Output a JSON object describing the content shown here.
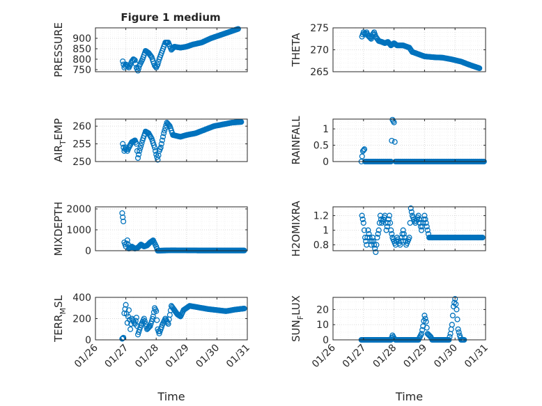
{
  "figure": {
    "title": "Figure 1 medium",
    "xlabel": "Time"
  },
  "time_ticks": [
    "01/26",
    "01/27",
    "01/28",
    "01/29",
    "01/30",
    "01/31"
  ],
  "chart_data": [
    {
      "type": "scatter",
      "id": "pressure",
      "ylabel": "PRESSURE",
      "ylabel_sub": "",
      "ylabel_tail": "",
      "title": "Figure 1 medium",
      "xlim": [
        0,
        5
      ],
      "ylim": [
        740,
        950
      ],
      "yticks": [
        750,
        800,
        850,
        900
      ],
      "ytick_labels": [
        "750",
        "800",
        "850",
        "900"
      ],
      "minor": [
        760,
        770,
        780,
        790,
        810,
        820,
        830,
        840,
        860,
        870,
        880,
        890,
        910,
        920,
        930,
        940
      ],
      "keys": [
        [
          0.9,
          790
        ],
        [
          0.95,
          760
        ],
        [
          1.0,
          775
        ],
        [
          1.05,
          770
        ],
        [
          1.1,
          760
        ],
        [
          1.2,
          790
        ],
        [
          1.25,
          800
        ],
        [
          1.3,
          795
        ],
        [
          1.35,
          760
        ],
        [
          1.4,
          745
        ],
        [
          1.45,
          770
        ],
        [
          1.55,
          800
        ],
        [
          1.65,
          840
        ],
        [
          1.75,
          830
        ],
        [
          1.85,
          810
        ],
        [
          1.95,
          770
        ],
        [
          2.0,
          760
        ],
        [
          2.05,
          775
        ],
        [
          2.1,
          800
        ],
        [
          2.2,
          840
        ],
        [
          2.3,
          880
        ],
        [
          2.4,
          880
        ],
        [
          2.5,
          845
        ],
        [
          2.6,
          860
        ],
        [
          2.8,
          855
        ],
        [
          3.0,
          860
        ],
        [
          3.2,
          870
        ],
        [
          3.5,
          880
        ],
        [
          3.8,
          900
        ],
        [
          4.1,
          915
        ],
        [
          4.4,
          930
        ],
        [
          4.7,
          945
        ]
      ]
    },
    {
      "type": "scatter",
      "id": "theta",
      "ylabel": "THETA",
      "ylabel_sub": "",
      "ylabel_tail": "",
      "xlim": [
        0,
        5
      ],
      "ylim": [
        265,
        275
      ],
      "yticks": [
        265,
        270,
        275
      ],
      "ytick_labels": [
        "265",
        "270",
        "275"
      ],
      "minor": [
        266,
        267,
        268,
        269,
        271,
        272,
        273,
        274
      ],
      "keys": [
        [
          0.95,
          273
        ],
        [
          1.0,
          274
        ],
        [
          1.05,
          273.5
        ],
        [
          1.1,
          274
        ],
        [
          1.15,
          273.2
        ],
        [
          1.25,
          272.5
        ],
        [
          1.3,
          273.5
        ],
        [
          1.35,
          274
        ],
        [
          1.4,
          273
        ],
        [
          1.5,
          272
        ],
        [
          1.6,
          271.8
        ],
        [
          1.7,
          271.5
        ],
        [
          1.8,
          271.8
        ],
        [
          1.9,
          271
        ],
        [
          2.0,
          271.5
        ],
        [
          2.1,
          271
        ],
        [
          2.3,
          271
        ],
        [
          2.5,
          270.5
        ],
        [
          2.6,
          269.5
        ],
        [
          2.8,
          269
        ],
        [
          3.0,
          268.5
        ],
        [
          3.3,
          268.3
        ],
        [
          3.6,
          268.2
        ],
        [
          3.9,
          267.8
        ],
        [
          4.2,
          267.3
        ],
        [
          4.5,
          266.5
        ],
        [
          4.8,
          265.8
        ]
      ]
    },
    {
      "type": "scatter",
      "id": "air_temp",
      "ylabel": "AIR",
      "ylabel_sub": "T",
      "ylabel_tail": "EMP",
      "xlim": [
        0,
        5
      ],
      "ylim": [
        250,
        262
      ],
      "yticks": [
        250,
        255,
        260
      ],
      "ytick_labels": [
        "250",
        "255",
        "260"
      ],
      "minor": [
        251,
        252,
        253,
        254,
        256,
        257,
        258,
        259,
        261
      ],
      "keys": [
        [
          0.9,
          255
        ],
        [
          0.95,
          253
        ],
        [
          1.0,
          254
        ],
        [
          1.05,
          253
        ],
        [
          1.1,
          254
        ],
        [
          1.2,
          255.5
        ],
        [
          1.3,
          256
        ],
        [
          1.35,
          255
        ],
        [
          1.4,
          251
        ],
        [
          1.45,
          253
        ],
        [
          1.55,
          256
        ],
        [
          1.65,
          258.5
        ],
        [
          1.75,
          258
        ],
        [
          1.85,
          256.5
        ],
        [
          1.95,
          254
        ],
        [
          2.0,
          252
        ],
        [
          2.05,
          250.5
        ],
        [
          2.1,
          253
        ],
        [
          2.15,
          254
        ],
        [
          2.25,
          258
        ],
        [
          2.35,
          261
        ],
        [
          2.45,
          260
        ],
        [
          2.55,
          257.5
        ],
        [
          2.8,
          257
        ],
        [
          3.0,
          257.5
        ],
        [
          3.3,
          258
        ],
        [
          3.6,
          259
        ],
        [
          3.9,
          260
        ],
        [
          4.2,
          260.5
        ],
        [
          4.5,
          261
        ],
        [
          4.8,
          261.2
        ]
      ]
    },
    {
      "type": "scatter",
      "id": "rainfall",
      "ylabel": "RAINFALL",
      "ylabel_sub": "",
      "ylabel_tail": "",
      "xlim": [
        0,
        5
      ],
      "ylim": [
        0,
        1.3
      ],
      "yticks": [
        0,
        0.5,
        1
      ],
      "ytick_labels": [
        "0",
        "0.5",
        "1"
      ],
      "minor": [
        0.1,
        0.2,
        0.3,
        0.4,
        0.6,
        0.7,
        0.8,
        0.9,
        1.1,
        1.2
      ],
      "keys": [
        [
          0.93,
          0
        ],
        [
          0.98,
          0.32
        ],
        [
          1.03,
          0.38
        ],
        [
          1.05,
          0
        ],
        [
          1.9,
          0
        ],
        [
          1.95,
          1.28
        ],
        [
          2.0,
          1.2
        ],
        [
          2.05,
          0
        ],
        [
          4.95,
          0
        ]
      ]
    },
    {
      "type": "scatter",
      "id": "mixdepth",
      "ylabel": "MIXDEPTH",
      "ylabel_sub": "",
      "ylabel_tail": "",
      "xlim": [
        0,
        5
      ],
      "ylim": [
        0,
        2100
      ],
      "yticks": [
        0,
        1000,
        2000
      ],
      "ytick_labels": [
        "0",
        "1000",
        "2000"
      ],
      "minor": [
        200,
        400,
        600,
        800,
        1200,
        1400,
        1600,
        1800
      ],
      "keys": [
        [
          0.88,
          1800
        ],
        [
          0.92,
          1400
        ],
        [
          0.95,
          400
        ],
        [
          1.0,
          200
        ],
        [
          1.05,
          500
        ],
        [
          1.1,
          100
        ],
        [
          1.2,
          200
        ],
        [
          1.3,
          100
        ],
        [
          1.4,
          150
        ],
        [
          1.5,
          300
        ],
        [
          1.6,
          200
        ],
        [
          1.7,
          250
        ],
        [
          1.8,
          400
        ],
        [
          1.9,
          500
        ],
        [
          2.0,
          200
        ],
        [
          2.05,
          0
        ],
        [
          2.5,
          20
        ],
        [
          3.5,
          10
        ],
        [
          4.9,
          10
        ]
      ]
    },
    {
      "type": "scatter",
      "id": "h2omixra",
      "ylabel": "H2OMIXRA",
      "ylabel_sub": "",
      "ylabel_tail": "",
      "xlim": [
        0,
        5
      ],
      "ylim": [
        0.72,
        1.32
      ],
      "yticks": [
        0.8,
        1,
        1.2
      ],
      "ytick_labels": [
        "0.8",
        "1",
        "1.2"
      ],
      "minor": [
        0.9,
        1.1,
        1.3
      ],
      "keys": [
        [
          0.95,
          1.2
        ],
        [
          1.0,
          1.1
        ],
        [
          1.05,
          0.9
        ],
        [
          1.1,
          0.8
        ],
        [
          1.15,
          1.0
        ],
        [
          1.2,
          0.9
        ],
        [
          1.25,
          0.8
        ],
        [
          1.3,
          0.9
        ],
        [
          1.35,
          0.8
        ],
        [
          1.4,
          0.7
        ],
        [
          1.45,
          0.9
        ],
        [
          1.5,
          1.0
        ],
        [
          1.55,
          1.2
        ],
        [
          1.6,
          1.1
        ],
        [
          1.7,
          1.2
        ],
        [
          1.75,
          1.0
        ],
        [
          1.8,
          1.1
        ],
        [
          1.85,
          1.2
        ],
        [
          1.9,
          1.0
        ],
        [
          1.95,
          0.9
        ],
        [
          2.05,
          0.8
        ],
        [
          2.1,
          0.9
        ],
        [
          2.2,
          0.8
        ],
        [
          2.3,
          1.0
        ],
        [
          2.4,
          0.8
        ],
        [
          2.5,
          0.9
        ],
        [
          2.55,
          1.3
        ],
        [
          2.6,
          1.2
        ],
        [
          2.7,
          1.1
        ],
        [
          2.8,
          1.2
        ],
        [
          2.9,
          1.0
        ],
        [
          3.0,
          1.2
        ],
        [
          3.1,
          1.0
        ],
        [
          3.15,
          0.9
        ],
        [
          4.9,
          0.9
        ]
      ]
    },
    {
      "type": "scatter",
      "id": "terr_msl",
      "ylabel": "TERR",
      "ylabel_sub": "M",
      "ylabel_tail": "SL",
      "xlim": [
        0,
        5
      ],
      "ylim": [
        0,
        400
      ],
      "yticks": [
        0,
        200,
        400
      ],
      "ytick_labels": [
        "0",
        "200",
        "400"
      ],
      "minor": [
        50,
        100,
        150,
        250,
        300,
        350
      ],
      "keys": [
        [
          0.88,
          10
        ],
        [
          0.92,
          20
        ],
        [
          0.95,
          250
        ],
        [
          1.0,
          330
        ],
        [
          1.05,
          160
        ],
        [
          1.1,
          280
        ],
        [
          1.15,
          100
        ],
        [
          1.2,
          200
        ],
        [
          1.3,
          150
        ],
        [
          1.35,
          210
        ],
        [
          1.4,
          50
        ],
        [
          1.5,
          140
        ],
        [
          1.6,
          200
        ],
        [
          1.7,
          100
        ],
        [
          1.8,
          130
        ],
        [
          1.9,
          220
        ],
        [
          1.95,
          300
        ],
        [
          2.0,
          270
        ],
        [
          2.05,
          100
        ],
        [
          2.1,
          60
        ],
        [
          2.2,
          140
        ],
        [
          2.3,
          200
        ],
        [
          2.4,
          150
        ],
        [
          2.5,
          320
        ],
        [
          2.6,
          280
        ],
        [
          2.7,
          240
        ],
        [
          2.8,
          220
        ],
        [
          2.9,
          280
        ],
        [
          3.1,
          320
        ],
        [
          3.3,
          310
        ],
        [
          3.5,
          300
        ],
        [
          3.7,
          290
        ],
        [
          4.0,
          280
        ],
        [
          4.3,
          270
        ],
        [
          4.6,
          285
        ],
        [
          4.9,
          295
        ]
      ]
    },
    {
      "type": "scatter",
      "id": "sun_flux",
      "ylabel": "SUN",
      "ylabel_sub": "F",
      "ylabel_tail": "LUX",
      "xlim": [
        0,
        5
      ],
      "ylim": [
        0,
        28
      ],
      "yticks": [
        0,
        10,
        20
      ],
      "ytick_labels": [
        "0",
        "10",
        "20"
      ],
      "minor": [
        5,
        15,
        25
      ],
      "keys": [
        [
          0.93,
          0
        ],
        [
          1.9,
          0
        ],
        [
          1.95,
          3
        ],
        [
          2.0,
          1
        ],
        [
          2.05,
          0
        ],
        [
          2.8,
          0
        ],
        [
          2.9,
          4
        ],
        [
          2.95,
          9
        ],
        [
          3.0,
          16
        ],
        [
          3.05,
          12
        ],
        [
          3.1,
          4
        ],
        [
          3.2,
          2
        ],
        [
          3.25,
          0
        ],
        [
          3.8,
          0
        ],
        [
          3.85,
          4
        ],
        [
          3.9,
          10
        ],
        [
          3.95,
          22
        ],
        [
          4.0,
          27
        ],
        [
          4.05,
          20
        ],
        [
          4.1,
          7
        ],
        [
          4.15,
          3
        ],
        [
          4.2,
          0
        ],
        [
          4.3,
          0
        ]
      ]
    }
  ]
}
